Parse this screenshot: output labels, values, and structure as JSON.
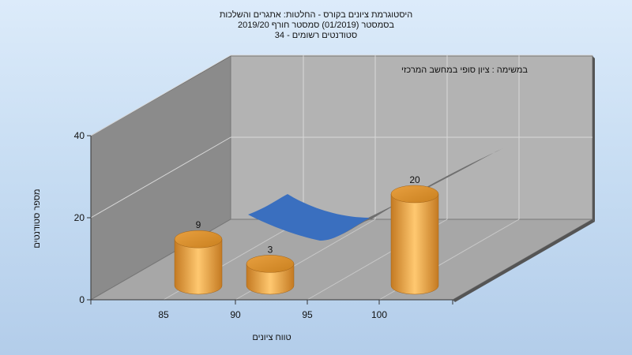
{
  "title_lines": [
    "היסטוגרמת ציונים בקורס - החלטות: אתגרים והשלכות",
    "בסמסטר  (01/2019)  סמסטר חורף 2019/20",
    "סטודנטים רשומים - 34"
  ],
  "chart_data": {
    "type": "bar",
    "subtitle": "במשימה : ציון סופי במחשב המרכזי",
    "xlabel": "טווח ציונים",
    "ylabel": "מספר סטודנטים",
    "categories": [
      "85",
      "90",
      "95",
      "100"
    ],
    "bars": [
      {
        "category": "85",
        "value": 9
      },
      {
        "category": "90",
        "value": 3
      },
      {
        "category": "100",
        "value": 20
      }
    ],
    "y_ticks": [
      0,
      20,
      40
    ],
    "ylim": [
      0,
      40
    ],
    "grid": true,
    "colors": {
      "bar": "#f0a848",
      "curve": "#3a6fbf",
      "wall_left": "#8a8a8a",
      "wall_back": "#b4b4b4",
      "floor": "#a9a9a9"
    }
  }
}
